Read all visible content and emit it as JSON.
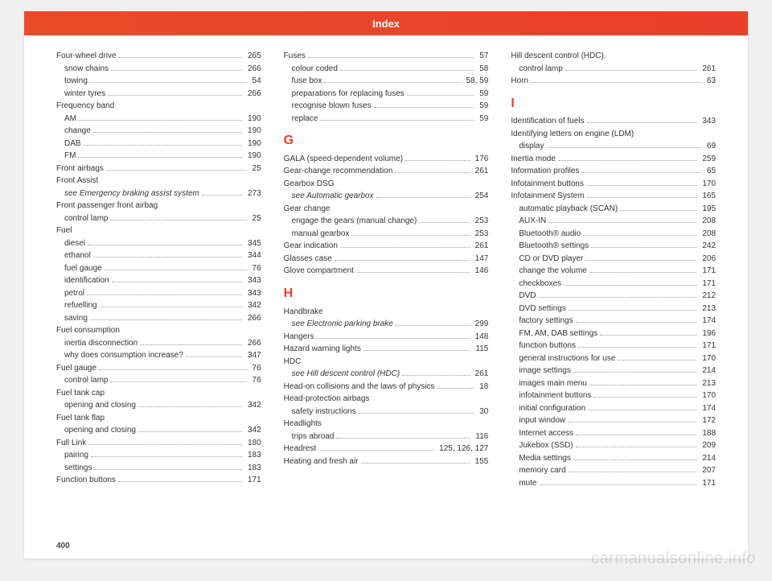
{
  "header": "Index",
  "pageNumber": "400",
  "watermark": "carmanualsonline.info",
  "columns": [
    {
      "entries": [
        {
          "label": "Four-wheel drive",
          "page": "265"
        },
        {
          "label": "snow chains",
          "page": "266",
          "sub": 1
        },
        {
          "label": "towing",
          "page": "54",
          "sub": 1
        },
        {
          "label": "winter tyres",
          "page": "266",
          "sub": 1
        },
        {
          "label": "Frequency band"
        },
        {
          "label": "AM",
          "page": "190",
          "sub": 1
        },
        {
          "label": "change",
          "page": "190",
          "sub": 1
        },
        {
          "label": "DAB",
          "page": "190",
          "sub": 1
        },
        {
          "label": "FM",
          "page": "190",
          "sub": 1
        },
        {
          "label": "Front airbags",
          "page": "25"
        },
        {
          "label": "Front Assist"
        },
        {
          "label": "see Emergency braking assist system",
          "page": "273",
          "sub": 1,
          "italic": true
        },
        {
          "label": "Front passenger front airbag"
        },
        {
          "label": "control lamp",
          "page": "25",
          "sub": 1
        },
        {
          "label": "Fuel"
        },
        {
          "label": "diesel",
          "page": "345",
          "sub": 1
        },
        {
          "label": "ethanol",
          "page": "344",
          "sub": 1
        },
        {
          "label": "fuel gauge",
          "page": "76",
          "sub": 1
        },
        {
          "label": "identification",
          "page": "343",
          "sub": 1
        },
        {
          "label": "petrol",
          "page": "343",
          "sub": 1
        },
        {
          "label": "refuelling",
          "page": "342",
          "sub": 1
        },
        {
          "label": "saving",
          "page": "266",
          "sub": 1
        },
        {
          "label": "Fuel consumption"
        },
        {
          "label": "inertia disconnection",
          "page": "266",
          "sub": 1
        },
        {
          "label": "why does consumption increase?",
          "page": "347",
          "sub": 1
        },
        {
          "label": "Fuel gauge",
          "page": "76"
        },
        {
          "label": "control lamp",
          "page": "76",
          "sub": 1
        },
        {
          "label": "Fuel tank cap"
        },
        {
          "label": "opening and closing",
          "page": "342",
          "sub": 1
        },
        {
          "label": "Fuel tank flap"
        },
        {
          "label": "opening and closing",
          "page": "342",
          "sub": 1
        },
        {
          "label": "Full Link",
          "page": "180"
        },
        {
          "label": "pairing",
          "page": "183",
          "sub": 1
        },
        {
          "label": "settings",
          "page": "183",
          "sub": 1
        },
        {
          "label": "Function buttons",
          "page": "171"
        }
      ]
    },
    {
      "entries": [
        {
          "label": "Fuses",
          "page": "57"
        },
        {
          "label": "colour coded",
          "page": "58",
          "sub": 1
        },
        {
          "label": "fuse box",
          "page": "58, 59",
          "sub": 1
        },
        {
          "label": "preparations for replacing fuses",
          "page": "59",
          "sub": 1
        },
        {
          "label": "recognise blown fuses",
          "page": "59",
          "sub": 1
        },
        {
          "label": "replace",
          "page": "59",
          "sub": 1
        },
        {
          "letter": "G"
        },
        {
          "label": "GALA (speed-dependent volume)",
          "page": "176"
        },
        {
          "label": "Gear-change recommendation",
          "page": "261"
        },
        {
          "label": "Gearbox DSG"
        },
        {
          "label": "see Automatic gearbox",
          "page": "254",
          "sub": 1,
          "italic": true
        },
        {
          "label": "Gear change"
        },
        {
          "label": "engage the gears (manual change)",
          "page": "253",
          "sub": 1
        },
        {
          "label": "manual gearbox",
          "page": "253",
          "sub": 1
        },
        {
          "label": "Gear indication",
          "page": "261"
        },
        {
          "label": "Glasses case",
          "page": "147"
        },
        {
          "label": "Glove compartment",
          "page": "146"
        },
        {
          "letter": "H"
        },
        {
          "label": "Handbrake"
        },
        {
          "label": "see Electronic parking brake",
          "page": "299",
          "sub": 1,
          "italic": true
        },
        {
          "label": "Hangers",
          "page": "148"
        },
        {
          "label": "Hazard warning lights",
          "page": "115"
        },
        {
          "label": "HDC"
        },
        {
          "label": "see Hill descent control (HDC)",
          "page": "261",
          "sub": 1,
          "italic": true
        },
        {
          "label": "Head-on collisions and the laws of physics",
          "page": "18"
        },
        {
          "label": "Head-protection airbags"
        },
        {
          "label": "safety instructions",
          "page": "30",
          "sub": 1
        },
        {
          "label": "Headlights"
        },
        {
          "label": "trips abroad",
          "page": "116",
          "sub": 1
        },
        {
          "label": "Headrest",
          "page": "125, 126, 127"
        },
        {
          "label": "Heating and fresh air",
          "page": "155"
        }
      ]
    },
    {
      "entries": [
        {
          "label": "Hill descent control (HDC)."
        },
        {
          "label": "control lamp",
          "page": "261",
          "sub": 1
        },
        {
          "label": "Horn",
          "page": "63"
        },
        {
          "letter": "I"
        },
        {
          "label": "Identification of fuels",
          "page": "343"
        },
        {
          "label": "Identifying letters on engine (LDM)"
        },
        {
          "label": "display",
          "page": "69",
          "sub": 1
        },
        {
          "label": "Inertia mode",
          "page": "259"
        },
        {
          "label": "Information profiles",
          "page": "65"
        },
        {
          "label": "Infotainment buttons",
          "page": "170"
        },
        {
          "label": "Infotainment System",
          "page": "165"
        },
        {
          "label": "automatic playback (SCAN)",
          "page": "195",
          "sub": 1
        },
        {
          "label": "AUX-IN",
          "page": "208",
          "sub": 1
        },
        {
          "label": "Bluetooth® audio",
          "page": "208",
          "sub": 1
        },
        {
          "label": "Bluetooth® settings",
          "page": "242",
          "sub": 1
        },
        {
          "label": "CD or DVD player",
          "page": "206",
          "sub": 1
        },
        {
          "label": "change the volume",
          "page": "171",
          "sub": 1
        },
        {
          "label": "checkboxes",
          "page": "171",
          "sub": 1
        },
        {
          "label": "DVD",
          "page": "212",
          "sub": 1
        },
        {
          "label": "DVD settings",
          "page": "213",
          "sub": 1
        },
        {
          "label": "factory settings",
          "page": "174",
          "sub": 1
        },
        {
          "label": "FM, AM, DAB settings",
          "page": "196",
          "sub": 1
        },
        {
          "label": "function buttons",
          "page": "171",
          "sub": 1
        },
        {
          "label": "general instructions for use",
          "page": "170",
          "sub": 1
        },
        {
          "label": "image settings",
          "page": "214",
          "sub": 1
        },
        {
          "label": "images main menu",
          "page": "213",
          "sub": 1
        },
        {
          "label": "infotainment buttons",
          "page": "170",
          "sub": 1
        },
        {
          "label": "initial configuration",
          "page": "174",
          "sub": 1
        },
        {
          "label": "input window",
          "page": "172",
          "sub": 1
        },
        {
          "label": "Internet access",
          "page": "188",
          "sub": 1
        },
        {
          "label": "Jukebox (SSD)",
          "page": "209",
          "sub": 1
        },
        {
          "label": "Media settings",
          "page": "214",
          "sub": 1
        },
        {
          "label": "memory card",
          "page": "207",
          "sub": 1
        },
        {
          "label": "mute",
          "page": "171",
          "sub": 1
        }
      ]
    }
  ]
}
